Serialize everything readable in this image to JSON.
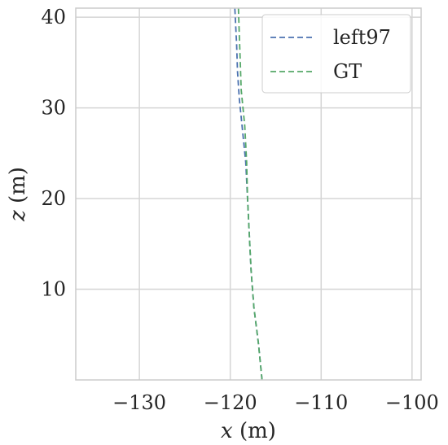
{
  "chart_data": {
    "type": "line",
    "xlabel_var": "x",
    "xlabel_unit": " (m)",
    "ylabel_var": "z",
    "ylabel_unit": " (m)",
    "xlim": [
      -137,
      -99
    ],
    "ylim": [
      0,
      41
    ],
    "xticks": [
      -130,
      -120,
      -110,
      -100
    ],
    "yticks": [
      10,
      20,
      30,
      40
    ],
    "xtick_labels": [
      "−130",
      "−120",
      "−110",
      "−100"
    ],
    "ytick_labels": [
      "10",
      "20",
      "30",
      "40"
    ],
    "grid": true,
    "legend_position": "top-right",
    "series": [
      {
        "name": "left97",
        "color": "#4c72b0",
        "style": "dashed",
        "points": [
          [
            -116.5,
            0
          ],
          [
            -116.9,
            4
          ],
          [
            -117.4,
            8
          ],
          [
            -117.7,
            12
          ],
          [
            -117.9,
            16
          ],
          [
            -118.1,
            20
          ],
          [
            -118.3,
            24
          ],
          [
            -118.7,
            28
          ],
          [
            -119.0,
            31
          ],
          [
            -119.2,
            34
          ],
          [
            -119.3,
            37
          ],
          [
            -119.4,
            39
          ],
          [
            -119.5,
            41
          ]
        ]
      },
      {
        "name": "GT",
        "color": "#55a868",
        "style": "dashed",
        "points": [
          [
            -116.5,
            0
          ],
          [
            -116.9,
            4
          ],
          [
            -117.4,
            8
          ],
          [
            -117.7,
            12
          ],
          [
            -117.9,
            16
          ],
          [
            -118.1,
            20
          ],
          [
            -118.2,
            24
          ],
          [
            -118.4,
            28
          ],
          [
            -118.6,
            30
          ],
          [
            -118.8,
            32
          ],
          [
            -118.9,
            35
          ],
          [
            -119.0,
            38
          ],
          [
            -119.1,
            41
          ]
        ]
      }
    ]
  }
}
